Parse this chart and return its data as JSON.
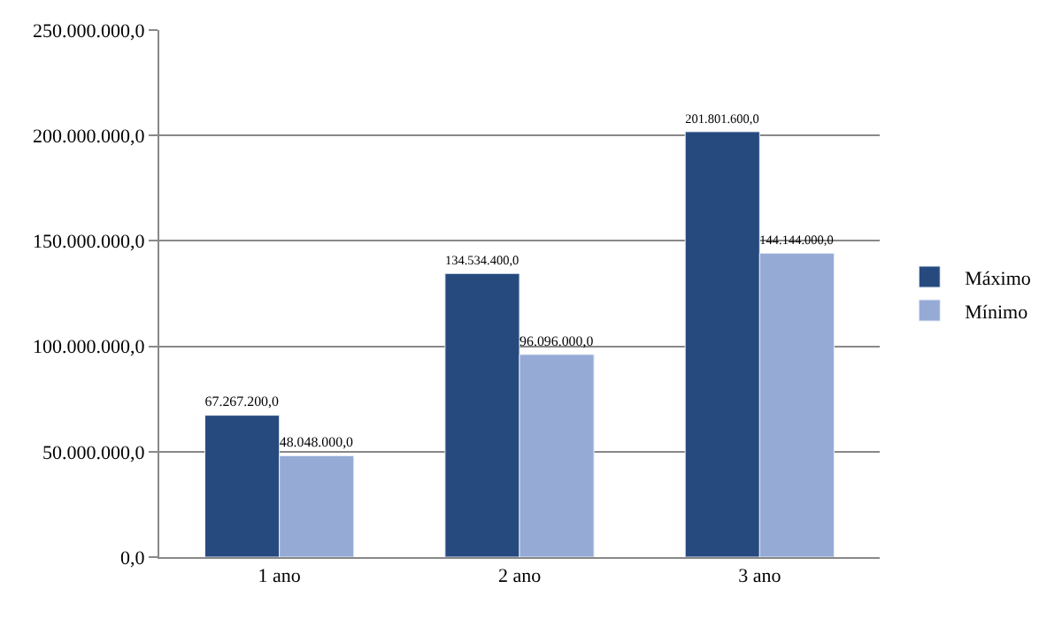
{
  "chart_data": {
    "type": "bar",
    "categories": [
      "1 ano",
      "2 ano",
      "3 ano"
    ],
    "series": [
      {
        "name": "Máximo",
        "color": "#264a7e",
        "values": [
          67267200,
          134534400,
          201801600
        ],
        "value_labels": [
          "67.267.200,0",
          "134.534.400,0",
          "201.801.600,0"
        ]
      },
      {
        "name": "Mínimo",
        "color": "#95abd6",
        "values": [
          48048000,
          96096000,
          144144000
        ],
        "value_labels": [
          "48.048.000,0",
          "96.096.000,0",
          "144.144.000,0"
        ]
      }
    ],
    "ylim": [
      0,
      250000000
    ],
    "yticks": [
      {
        "value": 0,
        "label": "0,0"
      },
      {
        "value": 50000000,
        "label": "50.000.000,0"
      },
      {
        "value": 100000000,
        "label": "100.000.000,0"
      },
      {
        "value": 150000000,
        "label": "150.000.000,0"
      },
      {
        "value": 200000000,
        "label": "200.000.000,0"
      },
      {
        "value": 250000000,
        "label": "250.000.000,0"
      }
    ],
    "grid": "y",
    "legend": "right"
  }
}
